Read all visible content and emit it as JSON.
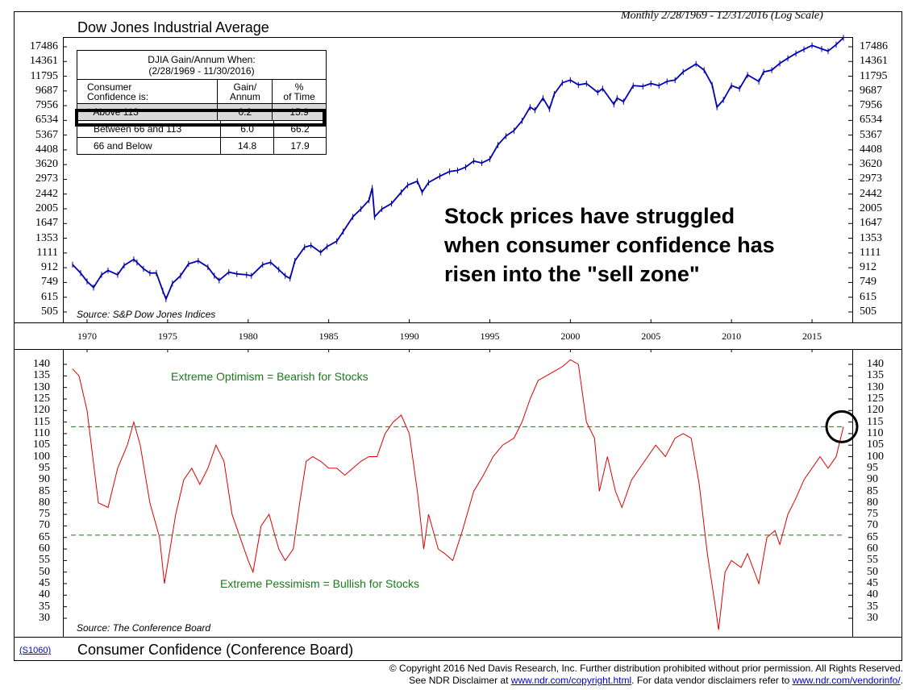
{
  "top_panel": {
    "title": "Dow Jones Industrial Average",
    "subtitle": "Monthly 2/28/1969 - 12/31/2016 (Log Scale)",
    "source": "Source: S&P Dow Jones Indices",
    "annotation_lines": [
      "Stock prices have struggled",
      "when consumer confidence has",
      "risen into the \"sell zone\""
    ],
    "table": {
      "heading_lines": [
        "DJIA Gain/Annum When:",
        "(2/28/1969 - 11/30/2016)"
      ],
      "col_headers": [
        [
          "Consumer",
          "Confidence is:"
        ],
        [
          "Gain/",
          "Annum"
        ],
        [
          "%",
          "of Time"
        ]
      ],
      "rows": [
        {
          "label": "* Above 113",
          "gain": "0.2",
          "time": "15.9",
          "highlight": true
        },
        {
          "label": "Between 66 and 113",
          "gain": "6.0",
          "time": "66.2",
          "highlight": false
        },
        {
          "label": "66 and Below",
          "gain": "14.8",
          "time": "17.9",
          "highlight": false
        }
      ]
    }
  },
  "bottom_panel": {
    "title": "Consumer Confidence (Conference Board)",
    "source": "Source: The Conference Board",
    "optimism_label": "Extreme Optimism = Bearish for Stocks",
    "pessimism_label": "Extreme Pessimism = Bullish for Stocks",
    "code": "(S1060)"
  },
  "footer": {
    "line1": "© Copyright 2016 Ned Davis Research, Inc.  Further distribution prohibited without prior permission.  All Rights Reserved.",
    "line2_pre": "See NDR Disclaimer at ",
    "line2_link1": "www.ndr.com/copyright.html",
    "line2_mid": ". For data vendor disclaimers refer to ",
    "line2_link2": "www.ndr.com/vendorinfo/",
    "line2_post": "."
  },
  "colors": {
    "djia": "#0000b0",
    "confidence": "#dd0000",
    "threshold": "#1a7a1a"
  },
  "chart_data": [
    {
      "type": "line",
      "title": "Dow Jones Industrial Average",
      "yscale": "log",
      "y_ticks": [
        505,
        615,
        749,
        912,
        1111,
        1353,
        1647,
        2005,
        2442,
        2973,
        3620,
        4408,
        5367,
        6534,
        7956,
        9687,
        11795,
        14361,
        17486
      ],
      "x_ticks": [
        1970,
        1975,
        1980,
        1985,
        1990,
        1995,
        2000,
        2005,
        2010,
        2015
      ],
      "xlim": [
        1969.0,
        2017.0
      ],
      "ylim": [
        475,
        19500
      ],
      "series": [
        {
          "x": [
            1969.1,
            1969.6,
            1970.0,
            1970.4,
            1970.9,
            1971.3,
            1971.9,
            1972.3,
            1972.9,
            1973.1,
            1973.5,
            1973.9,
            1974.3,
            1974.7,
            1974.9,
            1975.3,
            1975.8,
            1976.3,
            1976.9,
            1977.5,
            1977.9,
            1978.2,
            1978.8,
            1979.3,
            1979.9,
            1980.2,
            1980.9,
            1981.4,
            1981.9,
            1982.3,
            1982.6,
            1982.9,
            1983.5,
            1983.9,
            1984.5,
            1984.9,
            1985.5,
            1985.9,
            1986.5,
            1987.0,
            1987.5,
            1987.7,
            1987.85,
            1988.3,
            1988.9,
            1989.5,
            1989.9,
            1990.5,
            1990.8,
            1991.2,
            1991.9,
            1992.5,
            1993.0,
            1993.5,
            1994.0,
            1994.5,
            1995.0,
            1995.5,
            1996.0,
            1996.5,
            1997.0,
            1997.5,
            1997.8,
            1998.3,
            1998.7,
            1999.0,
            1999.5,
            2000.0,
            2000.5,
            2001.0,
            2001.7,
            2002.0,
            2002.7,
            2002.9,
            2003.3,
            2003.9,
            2004.5,
            2005.0,
            2005.5,
            2006.0,
            2006.5,
            2007.0,
            2007.8,
            2008.3,
            2008.8,
            2009.1,
            2009.5,
            2010.0,
            2010.5,
            2011.0,
            2011.7,
            2012.0,
            2012.5,
            2013.0,
            2013.5,
            2014.0,
            2014.5,
            2015.0,
            2015.6,
            2016.0,
            2016.5,
            2016.95
          ],
          "values": [
            950,
            850,
            760,
            700,
            830,
            880,
            830,
            940,
            1020,
            980,
            900,
            850,
            850,
            670,
            600,
            740,
            820,
            960,
            1000,
            920,
            820,
            770,
            860,
            840,
            830,
            820,
            950,
            980,
            890,
            820,
            790,
            1000,
            1200,
            1230,
            1120,
            1210,
            1300,
            1480,
            1800,
            2000,
            2250,
            2650,
            1800,
            2000,
            2150,
            2500,
            2750,
            2900,
            2500,
            2850,
            3100,
            3300,
            3350,
            3500,
            3800,
            3700,
            3900,
            4700,
            5300,
            5700,
            6500,
            7800,
            7500,
            8800,
            7600,
            9300,
            10800,
            11200,
            10500,
            10700,
            9500,
            10000,
            8100,
            8800,
            8400,
            10400,
            10300,
            10700,
            10400,
            11000,
            11200,
            12500,
            13900,
            12800,
            10500,
            7800,
            8600,
            10400,
            10000,
            12000,
            11000,
            12500,
            12800,
            14000,
            15000,
            16000,
            16900,
            17800,
            17000,
            16500,
            18000,
            19700
          ]
        }
      ]
    },
    {
      "type": "line",
      "title": "Consumer Confidence (Conference Board)",
      "y_ticks": [
        30,
        35,
        40,
        45,
        50,
        55,
        60,
        65,
        70,
        75,
        80,
        85,
        90,
        95,
        100,
        105,
        110,
        115,
        120,
        125,
        130,
        135,
        140
      ],
      "x_ticks": [
        1970,
        1975,
        1980,
        1985,
        1990,
        1995,
        2000,
        2005,
        2010,
        2015
      ],
      "xlim": [
        1969.0,
        2017.0
      ],
      "ylim": [
        25,
        145
      ],
      "thresholds": [
        113,
        66
      ],
      "series": [
        {
          "x": [
            1969.1,
            1969.5,
            1970.0,
            1970.7,
            1971.3,
            1971.9,
            1972.5,
            1972.9,
            1973.3,
            1973.9,
            1974.5,
            1974.8,
            1975.5,
            1976.0,
            1976.5,
            1977.0,
            1977.5,
            1978.0,
            1978.5,
            1979.0,
            1979.5,
            1980.0,
            1980.3,
            1980.8,
            1981.3,
            1981.9,
            1982.3,
            1982.8,
            1983.2,
            1983.6,
            1984.0,
            1984.5,
            1985.0,
            1985.5,
            1986.0,
            1986.5,
            1987.0,
            1987.5,
            1988.0,
            1988.5,
            1989.0,
            1989.5,
            1990.0,
            1990.5,
            1990.9,
            1991.2,
            1991.8,
            1992.2,
            1992.7,
            1993.3,
            1994.0,
            1994.6,
            1995.2,
            1995.8,
            1996.5,
            1997.0,
            1997.5,
            1998.0,
            1998.5,
            1999.0,
            1999.5,
            2000.0,
            2000.5,
            2001.0,
            2001.5,
            2001.8,
            2002.3,
            2002.8,
            2003.2,
            2003.8,
            2004.3,
            2004.8,
            2005.3,
            2005.9,
            2006.5,
            2007.0,
            2007.5,
            2008.0,
            2008.5,
            2009.0,
            2009.2,
            2009.6,
            2010.0,
            2010.6,
            2011.0,
            2011.7,
            2012.2,
            2012.7,
            2013.0,
            2013.5,
            2014.0,
            2014.5,
            2015.0,
            2015.5,
            2016.0,
            2016.5,
            2016.95
          ],
          "values": [
            138,
            135,
            120,
            80,
            78,
            95,
            105,
            115,
            105,
            80,
            65,
            45,
            75,
            90,
            95,
            88,
            95,
            105,
            98,
            75,
            65,
            55,
            50,
            70,
            75,
            60,
            55,
            60,
            80,
            98,
            100,
            98,
            95,
            95,
            92,
            95,
            98,
            100,
            100,
            110,
            115,
            118,
            110,
            85,
            60,
            75,
            60,
            58,
            55,
            68,
            85,
            92,
            100,
            105,
            108,
            115,
            125,
            133,
            135,
            137,
            139,
            142,
            140,
            115,
            108,
            85,
            100,
            85,
            78,
            90,
            95,
            100,
            105,
            100,
            108,
            110,
            108,
            88,
            58,
            35,
            25,
            50,
            55,
            52,
            58,
            45,
            65,
            68,
            62,
            75,
            82,
            90,
            95,
            100,
            95,
            100,
            113
          ]
        }
      ]
    }
  ]
}
